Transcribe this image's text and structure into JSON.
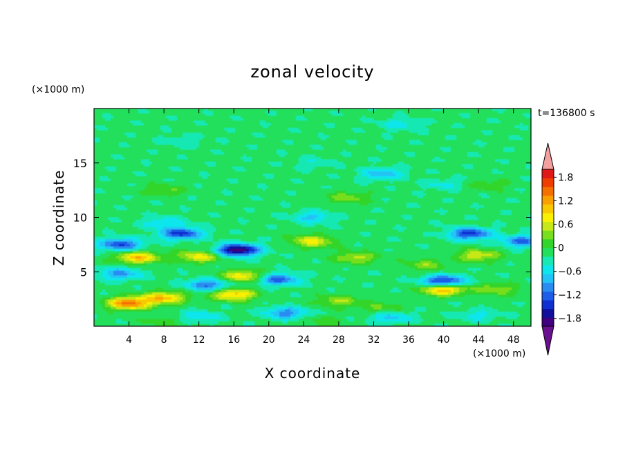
{
  "chart_data": {
    "type": "heatmap",
    "title": "zonal velocity",
    "xlabel": "X coordinate",
    "ylabel": "Z coordinate",
    "x_unit": "(×1000 m)",
    "y_unit": "(×1000 m)",
    "time_label": "t=136800 s",
    "xlim": [
      0,
      50
    ],
    "ylim": [
      0,
      20
    ],
    "x_ticks": [
      4,
      8,
      12,
      16,
      20,
      24,
      28,
      32,
      36,
      40,
      44,
      48
    ],
    "y_ticks": [
      5,
      10,
      15
    ],
    "colorbar": {
      "ticks": [
        "1.8",
        "1.2",
        "0.6",
        "0",
        "−0.6",
        "−1.2",
        "−1.8"
      ],
      "range": [
        -2,
        2
      ],
      "extend": "both",
      "colors": [
        "#6a0f8e",
        "#40007f",
        "#11109a",
        "#0f2fd0",
        "#1e5de8",
        "#2a8cf0",
        "#22c4f5",
        "#0ee6ec",
        "#18e8b4",
        "#23e05c",
        "#32d52c",
        "#78de1e",
        "#c6e818",
        "#f8f000",
        "#f8c800",
        "#f8a000",
        "#f47000",
        "#ef3c00",
        "#e01818",
        "#f3a0a0"
      ]
    },
    "field": {
      "background": -0.15,
      "anomalies": [
        {
          "x": 35,
          "z": 18.5,
          "u": -0.4
        },
        {
          "x": 10,
          "z": 17.0,
          "u": -0.25
        },
        {
          "x": 25,
          "z": 15.0,
          "u": -0.25
        },
        {
          "x": 33,
          "z": 14.0,
          "u": -0.7
        },
        {
          "x": 40,
          "z": 13.0,
          "u": -0.35
        },
        {
          "x": 8,
          "z": 12.5,
          "u": 0.4
        },
        {
          "x": 29,
          "z": 11.8,
          "u": 0.5
        },
        {
          "x": 45,
          "z": 13.0,
          "u": 0.3
        },
        {
          "x": 25,
          "z": 10.0,
          "u": -0.6
        },
        {
          "x": 8,
          "z": 9.5,
          "u": -0.5
        },
        {
          "x": 10,
          "z": 8.5,
          "u": -1.3
        },
        {
          "x": 3,
          "z": 7.5,
          "u": -1.2
        },
        {
          "x": 43,
          "z": 8.5,
          "u": -1.3
        },
        {
          "x": 49,
          "z": 7.8,
          "u": -1.0
        },
        {
          "x": 16.5,
          "z": 7.0,
          "u": -1.9
        },
        {
          "x": 25,
          "z": 7.8,
          "u": 0.9
        },
        {
          "x": 5,
          "z": 6.3,
          "u": 1.2
        },
        {
          "x": 12,
          "z": 6.4,
          "u": 0.9
        },
        {
          "x": 30,
          "z": 6.3,
          "u": 0.7
        },
        {
          "x": 44,
          "z": 6.5,
          "u": 0.8
        },
        {
          "x": 38,
          "z": 5.6,
          "u": 0.5
        },
        {
          "x": 17,
          "z": 4.6,
          "u": 1.0
        },
        {
          "x": 3,
          "z": 4.8,
          "u": -0.8
        },
        {
          "x": 21,
          "z": 4.3,
          "u": -1.1
        },
        {
          "x": 40,
          "z": 4.1,
          "u": -1.5
        },
        {
          "x": 13,
          "z": 3.8,
          "u": -1.0
        },
        {
          "x": 40,
          "z": 3.4,
          "u": 1.4
        },
        {
          "x": 46,
          "z": 3.4,
          "u": 0.6
        },
        {
          "x": 8,
          "z": 2.6,
          "u": 1.2
        },
        {
          "x": 16,
          "z": 2.9,
          "u": 1.2
        },
        {
          "x": 4,
          "z": 2.1,
          "u": 1.6
        },
        {
          "x": 28,
          "z": 2.3,
          "u": 0.6
        },
        {
          "x": 33,
          "z": 1.7,
          "u": 0.4
        },
        {
          "x": 22,
          "z": 1.2,
          "u": -0.9
        },
        {
          "x": 12,
          "z": 0.9,
          "u": -0.5
        },
        {
          "x": 34,
          "z": 0.8,
          "u": -0.6
        },
        {
          "x": 44,
          "z": 1.0,
          "u": -0.4
        },
        {
          "x": 8,
          "z": 0.4,
          "u": 0.3
        },
        {
          "x": 26,
          "z": 0.4,
          "u": 0.3
        }
      ]
    }
  }
}
